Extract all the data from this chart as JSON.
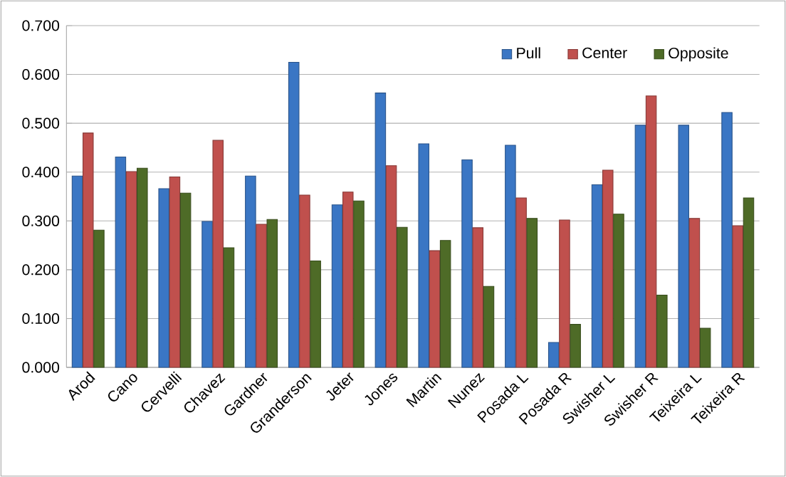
{
  "chart_data": {
    "type": "bar",
    "categories": [
      "Arod",
      "Cano",
      "Cervelli",
      "Chavez",
      "Gardner",
      "Granderson",
      "Jeter",
      "Jones",
      "Martin",
      "Nunez",
      "Posada L",
      "Posada R",
      "Swisher L",
      "Swisher R",
      "Teixeira L",
      "Teixeira R"
    ],
    "series": [
      {
        "name": "Pull",
        "color": "#3a76c4",
        "values": [
          0.392,
          0.431,
          0.366,
          0.299,
          0.392,
          0.625,
          0.333,
          0.562,
          0.458,
          0.425,
          0.455,
          0.051,
          0.374,
          0.496,
          0.496,
          0.522
        ]
      },
      {
        "name": "Center",
        "color": "#c0504d",
        "values": [
          0.48,
          0.401,
          0.39,
          0.465,
          0.293,
          0.353,
          0.359,
          0.413,
          0.239,
          0.286,
          0.347,
          0.302,
          0.404,
          0.556,
          0.305,
          0.29
        ]
      },
      {
        "name": "Opposite",
        "color": "#4e6b27",
        "values": [
          0.281,
          0.408,
          0.357,
          0.245,
          0.303,
          0.218,
          0.341,
          0.287,
          0.26,
          0.166,
          0.305,
          0.088,
          0.314,
          0.148,
          0.08,
          0.347
        ]
      }
    ],
    "ylim": [
      0,
      0.7
    ],
    "yticks": [
      {
        "value": 0,
        "label": "0.000"
      },
      {
        "value": 0.1,
        "label": "0.100"
      },
      {
        "value": 0.2,
        "label": "0.200"
      },
      {
        "value": 0.3,
        "label": "0.300"
      },
      {
        "value": 0.4,
        "label": "0.400"
      },
      {
        "value": 0.5,
        "label": "0.500"
      },
      {
        "value": 0.6,
        "label": "0.600"
      },
      {
        "value": 0.7,
        "label": "0.700"
      }
    ],
    "grid": "y",
    "legend": "top right"
  }
}
